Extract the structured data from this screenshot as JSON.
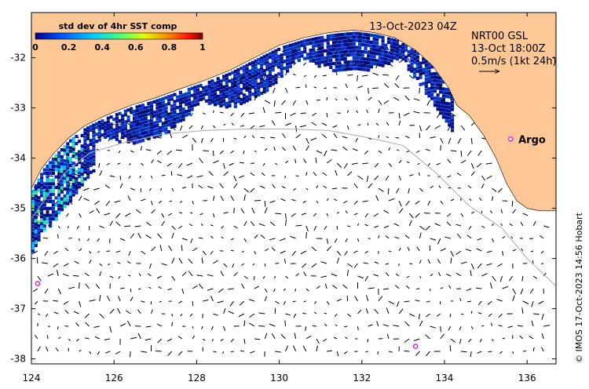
{
  "chart_data": {
    "type": "map",
    "colorbar": {
      "title": "std dev of 4hr SST comp",
      "ticks": [
        "0",
        "0.2",
        "0.4",
        "0.6",
        "0.8",
        "1"
      ],
      "range": [
        0,
        1
      ]
    },
    "timestamp": "13-Oct-2023 04Z",
    "current_product": {
      "line1": "NRT00 GSL",
      "line2": "13-Oct 18:00Z",
      "line3": "0.5m/s (1kt 24h)"
    },
    "x_axis": {
      "ticks": [
        124,
        126,
        128,
        130,
        132,
        134,
        136
      ],
      "lim": [
        124,
        136.7
      ]
    },
    "y_axis": {
      "ticks": [
        -32,
        -33,
        -34,
        -35,
        -36,
        -37,
        -38
      ],
      "lim": [
        -38.1,
        -31.1
      ]
    },
    "coastline_lonlat": [
      [
        124,
        -34.6
      ],
      [
        124.25,
        -34.2
      ],
      [
        124.55,
        -33.9
      ],
      [
        124.9,
        -33.6
      ],
      [
        125.3,
        -33.35
      ],
      [
        125.8,
        -33.15
      ],
      [
        126.4,
        -32.95
      ],
      [
        127.0,
        -32.8
      ],
      [
        127.6,
        -32.62
      ],
      [
        128.2,
        -32.45
      ],
      [
        128.8,
        -32.25
      ],
      [
        129.4,
        -32.0
      ],
      [
        130.0,
        -31.75
      ],
      [
        130.6,
        -31.6
      ],
      [
        131.2,
        -31.5
      ],
      [
        131.8,
        -31.45
      ],
      [
        132.3,
        -31.5
      ],
      [
        132.8,
        -31.6
      ],
      [
        133.3,
        -31.85
      ],
      [
        133.7,
        -32.15
      ],
      [
        134.1,
        -32.6
      ],
      [
        134.3,
        -32.95
      ],
      [
        134.6,
        -33.15
      ],
      [
        134.95,
        -33.55
      ],
      [
        135.25,
        -34.0
      ],
      [
        135.5,
        -34.5
      ],
      [
        135.75,
        -34.85
      ],
      [
        136.0,
        -35.0
      ],
      [
        136.3,
        -35.05
      ],
      [
        136.7,
        -35.05
      ]
    ],
    "shelf_edge_lonlat": [
      [
        124,
        -35.2
      ],
      [
        124.4,
        -34.75
      ],
      [
        124.8,
        -34.3
      ],
      [
        125.4,
        -33.9
      ],
      [
        126.2,
        -33.7
      ],
      [
        127.2,
        -33.52
      ],
      [
        128.2,
        -33.45
      ],
      [
        129.2,
        -33.42
      ],
      [
        130.2,
        -33.42
      ],
      [
        131.2,
        -33.45
      ],
      [
        132.2,
        -33.6
      ],
      [
        133.0,
        -33.75
      ],
      [
        133.8,
        -34.3
      ],
      [
        134.6,
        -34.95
      ],
      [
        135.4,
        -35.4
      ],
      [
        136.0,
        -36.0
      ],
      [
        136.7,
        -36.55
      ]
    ],
    "argo_floats": [
      {
        "lon": 135.6,
        "lat": -33.62,
        "label": "Argo"
      },
      {
        "lon": 124.15,
        "lat": -36.5,
        "label": ""
      },
      {
        "lon": 133.3,
        "lat": -37.75,
        "label": ""
      }
    ],
    "grid_lon_step": 0.5,
    "grid_lat_step": 0.5
  },
  "credit": "© IMOS 17-Oct-2023 14:56 Hobart",
  "colors": {
    "land": "#fdc896",
    "shelf_line": "#aaaaaa",
    "argo": "#ee11ee",
    "sst_dark": "#00108a",
    "sst_mid": "#1030d0"
  }
}
